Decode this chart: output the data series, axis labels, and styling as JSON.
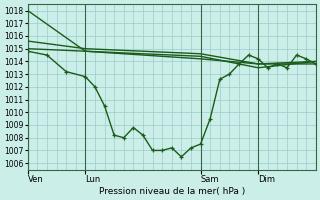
{
  "title": "Pression niveau de la mer( hPa )",
  "bg_color": "#cceee8",
  "grid_color": "#99cccc",
  "line_color": "#1a5c1a",
  "ylim": [
    1005.5,
    1018.5
  ],
  "yticks": [
    1006,
    1007,
    1008,
    1009,
    1010,
    1011,
    1012,
    1013,
    1014,
    1015,
    1016,
    1017,
    1018
  ],
  "xtick_labels": [
    "Ven",
    "Lun",
    "Sam",
    "Dim"
  ],
  "xtick_positions": [
    0,
    6,
    18,
    24
  ],
  "vline_positions": [
    0,
    6,
    18,
    24
  ],
  "xlim": [
    0,
    30
  ],
  "series": [
    {
      "x": [
        0,
        6,
        18,
        24,
        30
      ],
      "y": [
        1018.0,
        1014.8,
        1014.2,
        1013.8,
        1013.8
      ],
      "marker": false,
      "lw": 1.0
    },
    {
      "x": [
        0,
        6,
        18,
        24,
        30
      ],
      "y": [
        1015.6,
        1015.0,
        1014.6,
        1013.8,
        1014.0
      ],
      "marker": false,
      "lw": 1.0
    },
    {
      "x": [
        0,
        2,
        4,
        6,
        7,
        8,
        9,
        10,
        11,
        12,
        13,
        14,
        15,
        16,
        17,
        18,
        19,
        20,
        21,
        22,
        23,
        24,
        25,
        26,
        27,
        28,
        29,
        30
      ],
      "y": [
        1014.8,
        1014.5,
        1013.2,
        1012.8,
        1012.0,
        1010.5,
        1008.2,
        1008.0,
        1008.8,
        1008.2,
        1007.0,
        1007.0,
        1007.2,
        1006.5,
        1007.2,
        1007.5,
        1009.5,
        1012.6,
        1013.0,
        1013.8,
        1014.5,
        1014.2,
        1013.5,
        1013.8,
        1013.5,
        1014.5,
        1014.2,
        1013.8
      ],
      "marker": true,
      "lw": 1.0
    },
    {
      "x": [
        0,
        6,
        18,
        24,
        30
      ],
      "y": [
        1015.0,
        1014.8,
        1014.4,
        1013.5,
        1014.0
      ],
      "marker": false,
      "lw": 1.0
    }
  ],
  "ylabel_fontsize": 5.5,
  "xlabel_fontsize": 6.5,
  "xtick_fontsize": 6,
  "figsize": [
    3.2,
    2.0
  ],
  "dpi": 100
}
